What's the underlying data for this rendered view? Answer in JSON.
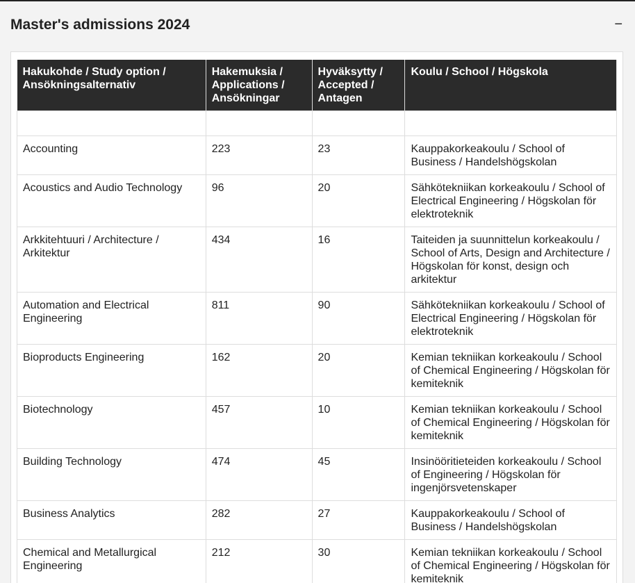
{
  "header": {
    "title": "Master's admissions 2024",
    "toggle": "−"
  },
  "table": {
    "columns": [
      "Hakukohde / Study option / Ansökningsalternativ",
      "Hakemuksia / Applications / Ansökningar",
      "Hyväksytty / Accepted / Antagen",
      "Koulu / School / Högskola"
    ],
    "rows": [
      [
        "Accounting",
        223,
        23,
        "Kauppakorkeakoulu / School of Business / Handelshögskolan"
      ],
      [
        "Acoustics and Audio Technology",
        96,
        20,
        "Sähkötekniikan korkeakoulu / School of Electrical Engineering / Högskolan för elektroteknik"
      ],
      [
        "Arkkitehtuuri / Architecture / Arkitektur",
        434,
        16,
        "Taiteiden ja suunnittelun korkeakoulu / School of Arts, Design and Architecture / Högskolan för konst, design och arkitektur"
      ],
      [
        "Automation and Electrical Engineering",
        811,
        90,
        "Sähkötekniikan korkeakoulu / School of Electrical Engineering / Högskolan för elektroteknik"
      ],
      [
        "Bioproducts Engineering",
        162,
        20,
        "Kemian tekniikan korkeakoulu / School of Chemical Engineering / Högskolan för kemiteknik"
      ],
      [
        "Biotechnology",
        457,
        10,
        "Kemian tekniikan korkeakoulu / School of Chemical Engineering / Högskolan för kemiteknik"
      ],
      [
        "Building Technology",
        474,
        45,
        "Insinööritieteiden korkeakoulu / School of Engineering / Högskolan för ingenjörsvetenskaper"
      ],
      [
        "Business Analytics",
        282,
        27,
        "Kauppakorkeakoulu / School of Business / Handelshögskolan"
      ],
      [
        "Chemical and Metallurgical Engineering",
        212,
        30,
        "Kemian tekniikan korkeakoulu / School of Chemical Engineering / Högskolan för kemiteknik"
      ]
    ]
  }
}
